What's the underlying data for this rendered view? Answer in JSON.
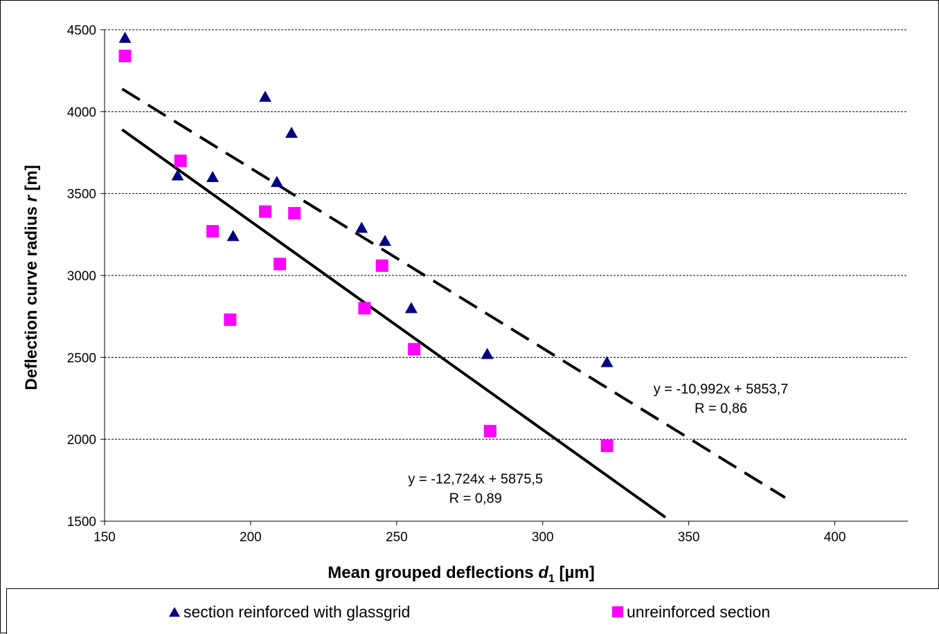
{
  "chart_data": {
    "type": "scatter",
    "xlabel_main": "Mean grouped deflections ",
    "xlabel_var": "d",
    "xlabel_sub": "1",
    "xlabel_unit": " [µm]",
    "ylabel_main": "Deflection curve radius ",
    "ylabel_var": "r",
    "ylabel_unit": " [m]",
    "xlim": [
      150,
      425
    ],
    "ylim": [
      1500,
      4500
    ],
    "xticks": [
      "150",
      "200",
      "250",
      "300",
      "350",
      "400"
    ],
    "yticks": [
      "1500",
      "2000",
      "2500",
      "3000",
      "3500",
      "4000",
      "4500"
    ],
    "grid": "horizontal dashed",
    "legend_position": "bottom",
    "series": [
      {
        "name": "section reinforced with glassgrid",
        "marker": "triangle",
        "color": "#000080",
        "points": [
          [
            157,
            4450
          ],
          [
            175,
            3610
          ],
          [
            187,
            3600
          ],
          [
            194,
            3240
          ],
          [
            205,
            4090
          ],
          [
            209,
            3570
          ],
          [
            214,
            3870
          ],
          [
            238,
            3290
          ],
          [
            246,
            3210
          ],
          [
            255,
            2800
          ],
          [
            281,
            2520
          ],
          [
            322,
            2470
          ]
        ]
      },
      {
        "name": "unreinforced section",
        "marker": "square",
        "color": "#ff00ff",
        "points": [
          [
            157,
            4340
          ],
          [
            176,
            3700
          ],
          [
            187,
            3270
          ],
          [
            193,
            2730
          ],
          [
            205,
            3390
          ],
          [
            210,
            3070
          ],
          [
            215,
            3380
          ],
          [
            239,
            2800
          ],
          [
            245,
            3060
          ],
          [
            256,
            2550
          ],
          [
            282,
            2050
          ],
          [
            322,
            1960
          ]
        ]
      }
    ],
    "trendlines": [
      {
        "style": "dashed",
        "color": "#000000",
        "slope": -10.992,
        "intercept": 5853.7,
        "x_range": [
          156,
          383
        ],
        "label_eq": "y = -10,992x + 5853,7",
        "label_r": "R = 0,86",
        "label_at": [
          361,
          2280
        ]
      },
      {
        "style": "solid",
        "color": "#000000",
        "slope": -12.724,
        "intercept": 5875.5,
        "x_range": [
          156,
          342
        ],
        "label_eq": "y = -12,724x + 5875,5",
        "label_r": "R = 0,89",
        "label_at": [
          277,
          1730
        ]
      }
    ]
  }
}
